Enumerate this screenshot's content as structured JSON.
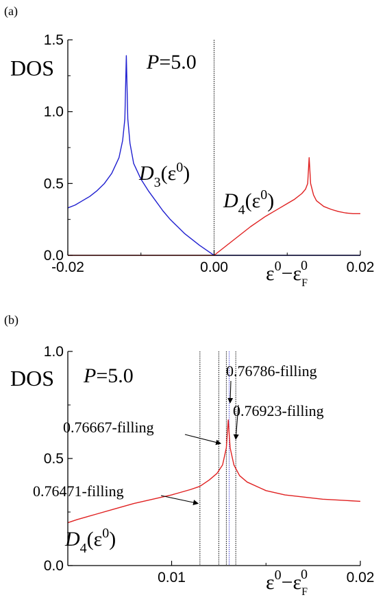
{
  "chart_data": [
    {
      "panel_label": "(a)",
      "type": "line",
      "ylabel": "DOS",
      "xlabel": {
        "eps": "ε",
        "sup": "0",
        "minus": "−ε",
        "subF": "F",
        "sup2": "0"
      },
      "xlim": [
        -0.02,
        0.02
      ],
      "ylim": [
        0,
        1.5
      ],
      "x_ticks": [
        -0.02,
        0.0,
        0.02
      ],
      "x_tick_labels": [
        "-0.02",
        "0.00",
        "0.02"
      ],
      "y_ticks": [
        0,
        0.5,
        1.0,
        1.5
      ],
      "y_tick_labels": [
        "0.0",
        "0.5",
        "1.0",
        "1.5"
      ],
      "parameter": {
        "name": "P",
        "eq": "=5.0"
      },
      "vertical_lines": [
        0.0
      ],
      "series": [
        {
          "name": "D3(ε0)",
          "label_parts": {
            "D": "D",
            "sub": "3",
            "open": "(ε",
            "sup": "0",
            "close": ")"
          },
          "color": "#1f1fd0",
          "points": [
            [
              -0.02,
              0.33
            ],
            [
              -0.019,
              0.35
            ],
            [
              -0.018,
              0.38
            ],
            [
              -0.017,
              0.41
            ],
            [
              -0.016,
              0.45
            ],
            [
              -0.015,
              0.5
            ],
            [
              -0.014,
              0.57
            ],
            [
              -0.013,
              0.68
            ],
            [
              -0.0125,
              0.8
            ],
            [
              -0.0122,
              0.95
            ],
            [
              -0.012,
              1.39
            ],
            [
              -0.0118,
              0.95
            ],
            [
              -0.0115,
              0.78
            ],
            [
              -0.011,
              0.64
            ],
            [
              -0.01,
              0.53
            ],
            [
              -0.009,
              0.45
            ],
            [
              -0.008,
              0.38
            ],
            [
              -0.007,
              0.31
            ],
            [
              -0.006,
              0.25
            ],
            [
              -0.005,
              0.2
            ],
            [
              -0.004,
              0.15
            ],
            [
              -0.003,
              0.11
            ],
            [
              -0.002,
              0.07
            ],
            [
              -0.001,
              0.035
            ],
            [
              0.0,
              0.0
            ],
            [
              0.02,
              0.0
            ]
          ]
        },
        {
          "name": "D4(ε0)",
          "label_parts": {
            "D": "D",
            "sub": "4",
            "open": "(ε",
            "sup": "0",
            "close": ")"
          },
          "color": "#e02020",
          "points": [
            [
              -0.02,
              0.0
            ],
            [
              0.0,
              0.0
            ],
            [
              0.001,
              0.04
            ],
            [
              0.002,
              0.08
            ],
            [
              0.003,
              0.12
            ],
            [
              0.004,
              0.16
            ],
            [
              0.005,
              0.2
            ],
            [
              0.006,
              0.235
            ],
            [
              0.007,
              0.27
            ],
            [
              0.008,
              0.3
            ],
            [
              0.009,
              0.33
            ],
            [
              0.01,
              0.36
            ],
            [
              0.011,
              0.39
            ],
            [
              0.012,
              0.43
            ],
            [
              0.0125,
              0.46
            ],
            [
              0.0128,
              0.5
            ],
            [
              0.013,
              0.68
            ],
            [
              0.0132,
              0.5
            ],
            [
              0.0136,
              0.42
            ],
            [
              0.014,
              0.38
            ],
            [
              0.015,
              0.34
            ],
            [
              0.016,
              0.32
            ],
            [
              0.017,
              0.305
            ],
            [
              0.018,
              0.295
            ],
            [
              0.019,
              0.29
            ],
            [
              0.02,
              0.29
            ]
          ]
        }
      ]
    },
    {
      "panel_label": "(b)",
      "type": "line",
      "ylabel": "DOS",
      "xlabel": {
        "eps": "ε",
        "sup": "0",
        "minus": "−ε",
        "subF": "F",
        "sup2": "0"
      },
      "xlim": [
        0.0045,
        0.02
      ],
      "ylim": [
        0,
        1.0
      ],
      "x_ticks": [
        0.01,
        0.02
      ],
      "x_tick_labels": [
        "0.01",
        "0.02"
      ],
      "y_ticks": [
        0,
        0.5,
        1.0
      ],
      "y_tick_labels": [
        "0.0",
        "0.5",
        "1.0"
      ],
      "parameter": {
        "name": "P",
        "eq": "=5.0"
      },
      "series": [
        {
          "name": "D4(ε0)",
          "label_parts": {
            "D": "D",
            "sub": "4",
            "open": "(ε",
            "sup": "0",
            "close": ")"
          },
          "color": "#e02020",
          "points": [
            [
              0.0045,
              0.2
            ],
            [
              0.005,
              0.215
            ],
            [
              0.006,
              0.24
            ],
            [
              0.007,
              0.265
            ],
            [
              0.008,
              0.29
            ],
            [
              0.009,
              0.31
            ],
            [
              0.01,
              0.33
            ],
            [
              0.011,
              0.355
            ],
            [
              0.0115,
              0.37
            ],
            [
              0.012,
              0.4
            ],
            [
              0.0124,
              0.43
            ],
            [
              0.0127,
              0.47
            ],
            [
              0.0129,
              0.55
            ],
            [
              0.013,
              0.68
            ],
            [
              0.0131,
              0.55
            ],
            [
              0.0133,
              0.47
            ],
            [
              0.0136,
              0.42
            ],
            [
              0.014,
              0.39
            ],
            [
              0.015,
              0.35
            ],
            [
              0.016,
              0.33
            ],
            [
              0.017,
              0.32
            ],
            [
              0.018,
              0.31
            ],
            [
              0.019,
              0.305
            ],
            [
              0.02,
              0.3
            ]
          ]
        }
      ],
      "vertical_lines": [
        {
          "x": 0.0115,
          "color": "#000000"
        },
        {
          "x": 0.0125,
          "color": "#000000"
        },
        {
          "x": 0.0129,
          "color": "#000000"
        },
        {
          "x": 0.01305,
          "color": "#4040e0"
        },
        {
          "x": 0.0134,
          "color": "#000000"
        }
      ],
      "annotations": [
        {
          "text": "0.76786-filling",
          "arrow_to": [
            0.0131,
            0.76
          ]
        },
        {
          "text": "0.76923-filling",
          "arrow_to": [
            0.0134,
            0.59
          ]
        },
        {
          "text": "0.76667-filling",
          "arrow_to": [
            0.0126,
            0.57
          ]
        },
        {
          "text": "0.76471-filling",
          "arrow_to": [
            0.0114,
            0.29
          ]
        }
      ]
    }
  ]
}
